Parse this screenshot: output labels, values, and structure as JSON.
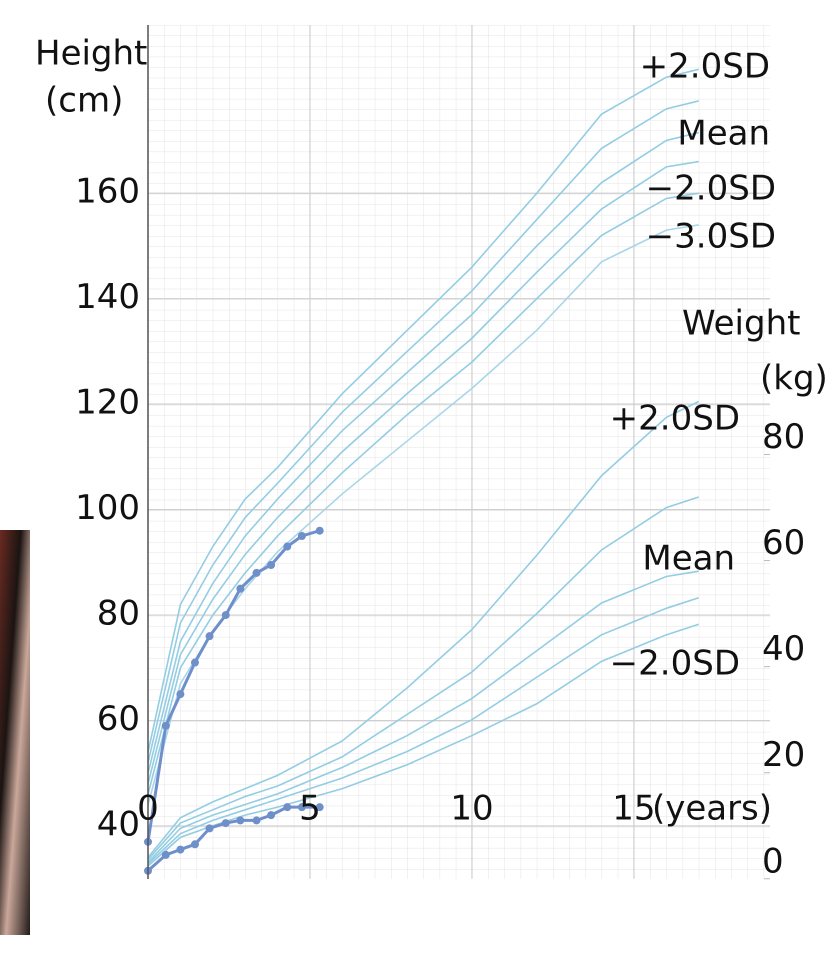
{
  "chart_data": {
    "type": "line",
    "y_label": [
      "Height",
      "(cm)"
    ],
    "y2_label": [
      "Weight",
      "(kg)"
    ],
    "x_label": "(years)",
    "x": [
      0,
      1,
      2,
      3,
      4,
      6,
      8,
      10,
      12,
      14,
      16,
      17
    ],
    "xlim": [
      0,
      19.2
    ],
    "xticks": [
      0,
      5,
      10,
      15
    ],
    "ylim": [
      30,
      191.9
    ],
    "yticks": [
      40,
      60,
      80,
      100,
      120,
      140,
      160
    ],
    "y2lim": [
      0,
      161
    ],
    "y2ticks": [
      0,
      20,
      40,
      60,
      80
    ],
    "grid": true,
    "series": [
      {
        "name": "+2.0SD",
        "color": "#93cde3",
        "axis": "y",
        "values": [
          54,
          82,
          93,
          102,
          108,
          122,
          134,
          146,
          160,
          175,
          182,
          183.5
        ]
      },
      {
        "color": "#93cde3",
        "axis": "y",
        "values": [
          52,
          78.5,
          89.5,
          98.5,
          105,
          118.5,
          130,
          141.5,
          155,
          168.5,
          176,
          177.5
        ]
      },
      {
        "name": "Mean",
        "color": "#93cde3",
        "axis": "y",
        "values": [
          50,
          75,
          86,
          95,
          102,
          115,
          126,
          137,
          150,
          162,
          170,
          171.5
        ]
      },
      {
        "color": "#93cde3",
        "axis": "y",
        "values": [
          48,
          72.5,
          83,
          91.5,
          98.5,
          111,
          122,
          132.5,
          145,
          157,
          165,
          166
        ]
      },
      {
        "name": "−2.0SD",
        "color": "#93cde3",
        "axis": "y",
        "values": [
          46,
          70,
          80,
          88,
          95,
          107,
          118,
          128,
          140,
          152,
          159,
          160
        ]
      },
      {
        "name": "−3.0SD",
        "color": "#a8d6e8",
        "axis": "y",
        "values": [
          44,
          67,
          77,
          85,
          92,
          103,
          113,
          123,
          134,
          147,
          153,
          154
        ]
      },
      {
        "name": "+2.0SD",
        "color": "#93cde3",
        "axis": "y2",
        "values": [
          4,
          11.5,
          14.5,
          17,
          19.5,
          26,
          36,
          47,
          61,
          76,
          87,
          90
        ]
      },
      {
        "color": "#93cde3",
        "axis": "y2",
        "values": [
          3.6,
          10.5,
          13,
          15.5,
          17.5,
          23,
          31,
          39,
          50,
          62,
          70,
          72
        ]
      },
      {
        "name": "Mean",
        "color": "#93cde3",
        "axis": "y2",
        "values": [
          3.1,
          9.5,
          12,
          14,
          16,
          21,
          27,
          34,
          43,
          52,
          57,
          58
        ]
      },
      {
        "color": "#93cde3",
        "axis": "y2",
        "values": [
          2.8,
          8.5,
          11,
          13,
          15,
          19,
          24,
          30,
          38,
          46,
          51,
          53
        ]
      },
      {
        "name": "−2.0SD",
        "color": "#93cde3",
        "axis": "y2",
        "values": [
          2.4,
          7.8,
          10,
          12,
          13.5,
          17,
          21.5,
          27,
          33,
          41,
          46,
          48
        ]
      },
      {
        "color": "#6f8fcb",
        "axis": "y",
        "markers": true,
        "x": [
          0,
          0.55,
          1,
          1.45,
          1.9,
          2.4,
          2.85,
          3.35,
          3.8,
          4.3,
          4.75,
          5.3
        ],
        "values": [
          37,
          59,
          65,
          71,
          76,
          80,
          85,
          88,
          89.5,
          93,
          95,
          96
        ]
      },
      {
        "color": "#6f8fcb",
        "axis": "y2",
        "markers": true,
        "x": [
          0,
          0.55,
          1,
          1.45,
          1.9,
          2.4,
          2.85,
          3.35,
          3.8,
          4.3,
          4.75,
          5.3
        ],
        "values": [
          1.5,
          4.5,
          5.5,
          6.5,
          9.5,
          10.5,
          11,
          11,
          12,
          13.5,
          13.5,
          13.5
        ]
      }
    ]
  }
}
